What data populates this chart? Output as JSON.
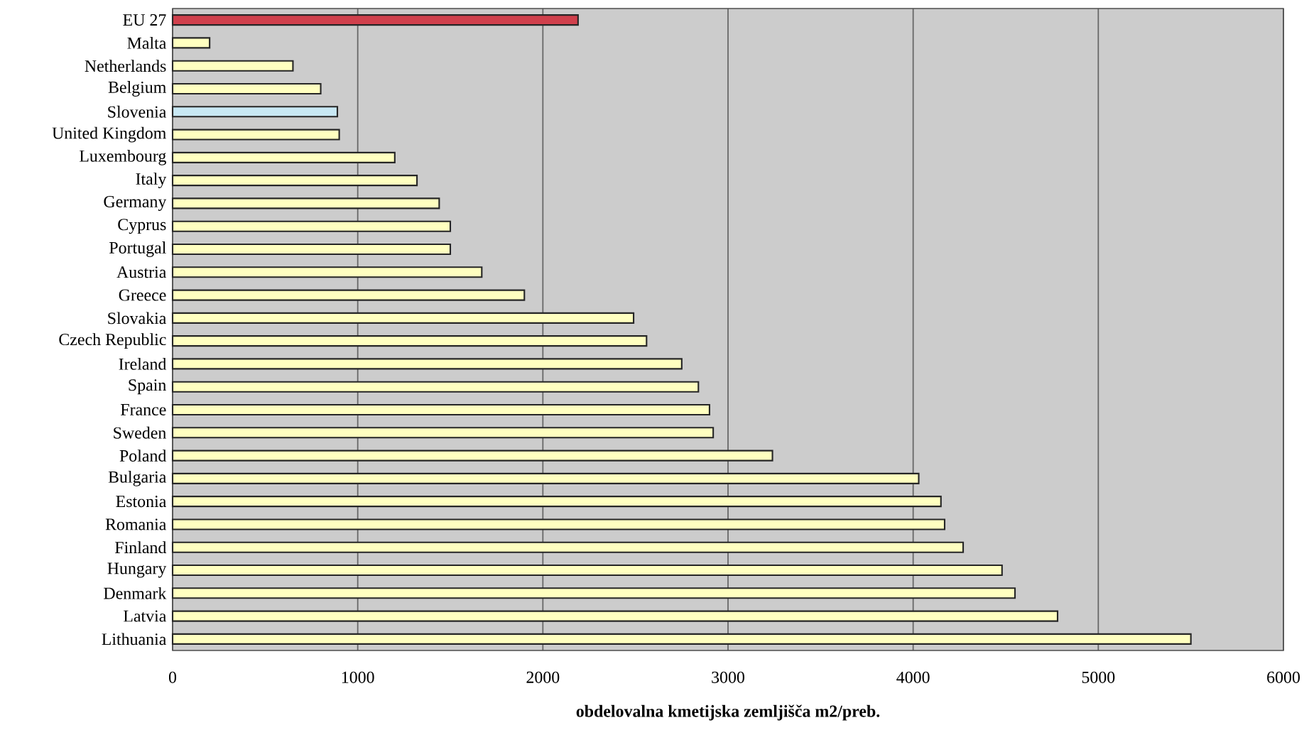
{
  "chart_data": {
    "type": "bar",
    "orientation": "horizontal",
    "xlabel": "obdelovalna kmetijska zemljišča m2/preb.",
    "categories": [
      "EU 27",
      "Malta",
      "Netherlands",
      "Belgium",
      "Slovenia",
      "United Kingdom",
      "Luxembourg",
      "Italy",
      "Germany",
      "Cyprus",
      "Portugal",
      "Austria",
      "Greece",
      "Slovakia",
      "Czech Republic",
      "Ireland",
      "Spain",
      "France",
      "Sweden",
      "Poland",
      "Bulgaria",
      "Estonia",
      "Romania",
      "Finland",
      "Hungary",
      "Denmark",
      "Latvia",
      "Lithuania"
    ],
    "values": [
      2190,
      200,
      650,
      800,
      890,
      900,
      1200,
      1320,
      1440,
      1500,
      1500,
      1670,
      1900,
      2490,
      2560,
      2750,
      2840,
      2900,
      2920,
      3240,
      4030,
      4150,
      4170,
      4270,
      4480,
      4550,
      4780,
      5500
    ],
    "colors": [
      "#d0404c",
      "#ffffc0",
      "#ffffc0",
      "#ffffc0",
      "#c8e8f4",
      "#ffffc0",
      "#ffffc0",
      "#ffffc0",
      "#ffffc0",
      "#ffffc0",
      "#ffffc0",
      "#ffffc0",
      "#ffffc0",
      "#ffffc0",
      "#ffffc0",
      "#ffffc0",
      "#ffffc0",
      "#ffffc0",
      "#ffffc0",
      "#ffffc0",
      "#ffffc0",
      "#ffffc0",
      "#ffffc0",
      "#ffffc0",
      "#ffffc0",
      "#ffffc0",
      "#ffffc0",
      "#ffffc0"
    ],
    "xlim": [
      0,
      6000
    ],
    "xticks": [
      0,
      1000,
      2000,
      3000,
      4000,
      5000,
      6000
    ],
    "grid": "x"
  }
}
